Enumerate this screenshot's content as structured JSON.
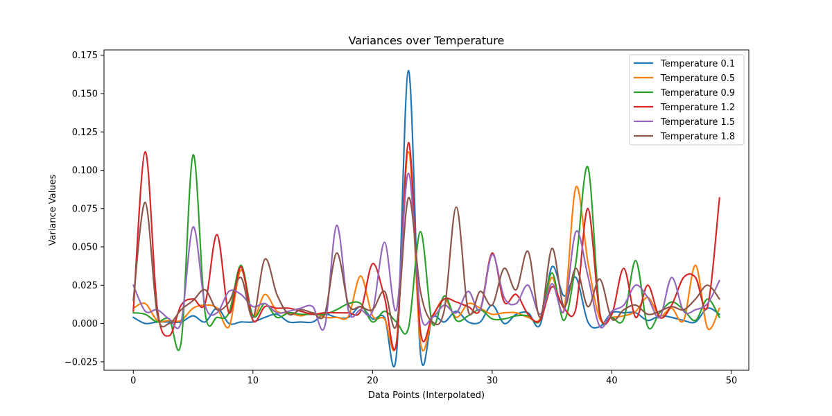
{
  "chart_data": {
    "type": "line",
    "title": "Variances over Temperature",
    "xlabel": "Data Points (Interpolated)",
    "ylabel": "Variance Values",
    "xlim": [
      -2.45,
      51.45
    ],
    "ylim": [
      -0.0305,
      0.1785
    ],
    "xticks": [
      0,
      10,
      20,
      30,
      40,
      50
    ],
    "xtick_labels": [
      "0",
      "10",
      "20",
      "30",
      "40",
      "50"
    ],
    "yticks": [
      -0.025,
      0.0,
      0.025,
      0.05,
      0.075,
      0.1,
      0.125,
      0.15,
      0.175
    ],
    "ytick_labels": [
      "−0.025",
      "0.000",
      "0.025",
      "0.050",
      "0.075",
      "0.100",
      "0.125",
      "0.150",
      "0.175"
    ],
    "grid": false,
    "legend_position": "top-right",
    "x": [
      0,
      1,
      2,
      3,
      4,
      5,
      6,
      7,
      8,
      9,
      10,
      11,
      12,
      13,
      14,
      15,
      16,
      17,
      18,
      19,
      20,
      21,
      22,
      23,
      24,
      25,
      26,
      27,
      28,
      29,
      30,
      31,
      32,
      33,
      34,
      35,
      36,
      37,
      38,
      39,
      40,
      41,
      42,
      43,
      44,
      45,
      46,
      47,
      48,
      49
    ],
    "series": [
      {
        "name": "Temperature 0.1",
        "color": "#1f77b4",
        "values": [
          0.004,
          0.0,
          0.001,
          0.001,
          0.001,
          0.005,
          0.001,
          0.01,
          0.0,
          0.001,
          0.001,
          0.004,
          0.006,
          0.001,
          0.001,
          0.001,
          0.006,
          0.004,
          0.004,
          0.011,
          0.003,
          0.004,
          -0.02,
          0.165,
          -0.019,
          0.004,
          0.001,
          0.008,
          0.001,
          0.001,
          0.012,
          0.0,
          0.006,
          0.007,
          -0.001,
          0.037,
          0.018,
          0.03,
          0.001,
          -0.002,
          0.007,
          0.007,
          0.007,
          0.002,
          0.005,
          0.004,
          0.002,
          0.001,
          0.01,
          0.006
        ]
      },
      {
        "name": "Temperature 0.5",
        "color": "#ff7f0e",
        "values": [
          0.01,
          0.013,
          0.002,
          0.002,
          0.002,
          0.01,
          0.012,
          0.01,
          -0.002,
          0.035,
          0.005,
          0.019,
          0.008,
          0.007,
          0.005,
          0.007,
          0.004,
          0.004,
          0.005,
          0.031,
          0.005,
          0.003,
          -0.012,
          0.112,
          -0.012,
          0.004,
          0.016,
          0.004,
          0.013,
          0.01,
          0.006,
          0.007,
          0.007,
          0.004,
          0.003,
          0.03,
          0.009,
          0.089,
          0.04,
          0.003,
          0.004,
          0.005,
          0.008,
          0.017,
          0.005,
          0.01,
          0.002,
          0.038,
          -0.003,
          0.01
        ]
      },
      {
        "name": "Temperature 0.9",
        "color": "#2ca02c",
        "values": [
          0.007,
          0.006,
          0.001,
          0.003,
          -0.012,
          0.11,
          0.007,
          0.004,
          0.007,
          0.038,
          0.005,
          0.013,
          0.004,
          0.007,
          0.006,
          0.006,
          0.006,
          0.009,
          0.013,
          0.013,
          0.001,
          0.008,
          0.001,
          -0.003,
          0.06,
          0.0,
          0.018,
          0.002,
          0.005,
          0.009,
          0.003,
          0.003,
          0.005,
          0.005,
          0.002,
          0.033,
          0.002,
          0.04,
          0.102,
          0.007,
          0.004,
          0.003,
          0.041,
          -0.002,
          0.007,
          0.014,
          0.009,
          0.002,
          0.016,
          0.004
        ]
      },
      {
        "name": "Temperature 1.2",
        "color": "#d62728",
        "values": [
          0.008,
          0.112,
          0.01,
          -0.008,
          0.012,
          0.016,
          0.013,
          0.058,
          0.007,
          0.037,
          0.002,
          0.011,
          0.01,
          0.01,
          0.008,
          0.006,
          0.007,
          0.007,
          0.007,
          0.008,
          0.039,
          0.017,
          -0.013,
          0.118,
          -0.005,
          0.005,
          0.016,
          0.014,
          0.011,
          0.009,
          0.046,
          0.014,
          0.019,
          0.006,
          0.002,
          0.024,
          0.01,
          0.01,
          0.075,
          0.006,
          0.006,
          0.036,
          0.004,
          0.025,
          0.004,
          0.012,
          0.03,
          0.03,
          0.011,
          0.082
        ]
      },
      {
        "name": "Temperature 1.5",
        "color": "#9467bd",
        "values": [
          0.025,
          0.008,
          0.009,
          0.003,
          0.001,
          0.063,
          0.012,
          0.007,
          0.021,
          0.019,
          0.011,
          0.013,
          0.007,
          0.008,
          0.01,
          0.011,
          -0.002,
          0.064,
          0.008,
          0.009,
          0.008,
          0.053,
          0.009,
          0.098,
          0.007,
          0.004,
          0.012,
          0.007,
          0.021,
          0.009,
          0.045,
          0.017,
          0.013,
          0.025,
          0.006,
          0.026,
          0.008,
          0.06,
          0.031,
          -0.002,
          0.008,
          0.012,
          0.025,
          0.017,
          0.004,
          0.03,
          0.008,
          0.009,
          0.013,
          0.028
        ]
      },
      {
        "name": "Temperature 1.8",
        "color": "#8c564b",
        "values": [
          0.015,
          0.079,
          0.006,
          0.0,
          0.009,
          0.015,
          0.022,
          0.009,
          0.014,
          0.03,
          0.004,
          0.042,
          0.019,
          0.006,
          0.009,
          0.007,
          0.006,
          0.046,
          0.012,
          0.011,
          0.009,
          0.021,
          -0.001,
          0.082,
          0.021,
          0.001,
          0.009,
          0.076,
          0.008,
          0.021,
          0.012,
          0.036,
          0.022,
          0.047,
          0.004,
          0.049,
          0.011,
          0.036,
          0.011,
          0.029,
          0.003,
          0.009,
          0.012,
          0.006,
          0.008,
          0.011,
          0.009,
          0.016,
          0.025,
          0.016
        ]
      }
    ]
  }
}
